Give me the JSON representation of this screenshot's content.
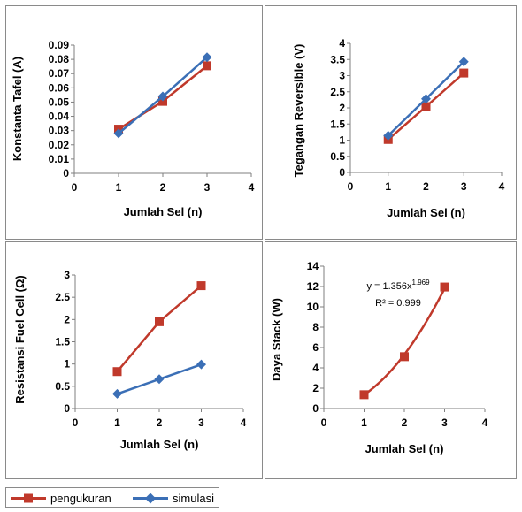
{
  "chart_data": [
    {
      "type": "line",
      "xlabel": "Jumlah Sel (n)",
      "ylabel": "Konstanta Tafel (A)",
      "xlim": [
        0,
        4
      ],
      "ylim": [
        0,
        0.09
      ],
      "xticks": [
        "0",
        "1",
        "2",
        "3",
        "4"
      ],
      "yticks": [
        "0",
        "0.01",
        "0.02",
        "0.03",
        "0.04",
        "0.05",
        "0.06",
        "0.07",
        "0.08",
        "0.09"
      ],
      "grid": false,
      "series": [
        {
          "name": "pengukuran",
          "color": "#c0392b",
          "marker": "square",
          "x": [
            1,
            2,
            3
          ],
          "y": [
            0.031,
            0.0505,
            0.0755
          ]
        },
        {
          "name": "simulasi",
          "color": "#3b6fb6",
          "marker": "diamond",
          "x": [
            1,
            2,
            3
          ],
          "y": [
            0.028,
            0.054,
            0.0815
          ]
        }
      ]
    },
    {
      "type": "line",
      "xlabel": "Jumlah Sel (n)",
      "ylabel": "Tegangan Reversible (V)",
      "xlim": [
        0,
        4
      ],
      "ylim": [
        0,
        4
      ],
      "xticks": [
        "0",
        "1",
        "2",
        "3",
        "4"
      ],
      "yticks": [
        "0",
        "0.5",
        "1",
        "1.5",
        "2",
        "2.5",
        "3",
        "3.5",
        "4"
      ],
      "grid": false,
      "series": [
        {
          "name": "pengukuran",
          "color": "#c0392b",
          "marker": "square",
          "x": [
            1,
            2,
            3
          ],
          "y": [
            1.02,
            2.04,
            3.08
          ]
        },
        {
          "name": "simulasi",
          "color": "#3b6fb6",
          "marker": "diamond",
          "x": [
            1,
            2,
            3
          ],
          "y": [
            1.14,
            2.28,
            3.43
          ]
        }
      ]
    },
    {
      "type": "line",
      "xlabel": "Jumlah Sel (n)",
      "ylabel": "Resistansi Fuel Cell (Ω)",
      "xlim": [
        0,
        4
      ],
      "ylim": [
        0,
        3
      ],
      "xticks": [
        "0",
        "1",
        "2",
        "3",
        "4"
      ],
      "yticks": [
        "0",
        "0.5",
        "1",
        "1.5",
        "2",
        "2.5",
        "3"
      ],
      "grid": false,
      "series": [
        {
          "name": "pengukuran",
          "color": "#c0392b",
          "marker": "square",
          "x": [
            1,
            2,
            3
          ],
          "y": [
            0.83,
            1.95,
            2.76
          ]
        },
        {
          "name": "simulasi",
          "color": "#3b6fb6",
          "marker": "diamond",
          "x": [
            1,
            2,
            3
          ],
          "y": [
            0.33,
            0.66,
            0.99
          ]
        }
      ]
    },
    {
      "type": "line",
      "xlabel": "Jumlah Sel (n)",
      "ylabel": "Daya Stack (W)",
      "xlim": [
        0,
        4
      ],
      "ylim": [
        0,
        14
      ],
      "xticks": [
        "0",
        "1",
        "2",
        "3",
        "4"
      ],
      "yticks": [
        "0",
        "2",
        "4",
        "6",
        "8",
        "10",
        "12",
        "14"
      ],
      "grid": false,
      "annotation": {
        "equation_base": "y = 1.356x",
        "equation_exp": "1.969",
        "r2": "R² = 0.999"
      },
      "series": [
        {
          "name": "pengukuran",
          "color": "#c0392b",
          "marker": "square",
          "x": [
            1,
            2,
            3
          ],
          "y": [
            1.36,
            5.1,
            11.95
          ]
        }
      ],
      "trendline": {
        "color": "#c0392b",
        "a": 1.356,
        "b": 1.969,
        "xrange": [
          1,
          3
        ]
      }
    }
  ],
  "legend": {
    "items": [
      {
        "label": "pengukuran",
        "color": "#c0392b",
        "marker": "square"
      },
      {
        "label": "simulasi",
        "color": "#3b6fb6",
        "marker": "diamond"
      }
    ]
  }
}
